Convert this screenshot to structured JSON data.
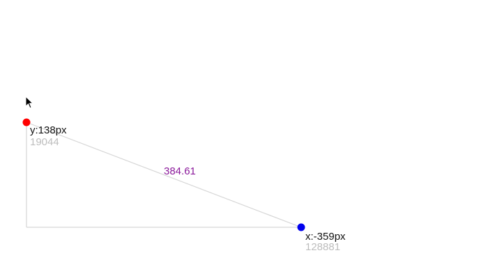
{
  "measurement": {
    "point_red": {
      "label": "y:138px",
      "squared": "19044",
      "color": "#ff0000"
    },
    "point_blue": {
      "label": "x:-359px",
      "squared": "128881",
      "color": "#0000ee"
    },
    "distance": "384.61",
    "line_color": "#d6d6d6"
  }
}
